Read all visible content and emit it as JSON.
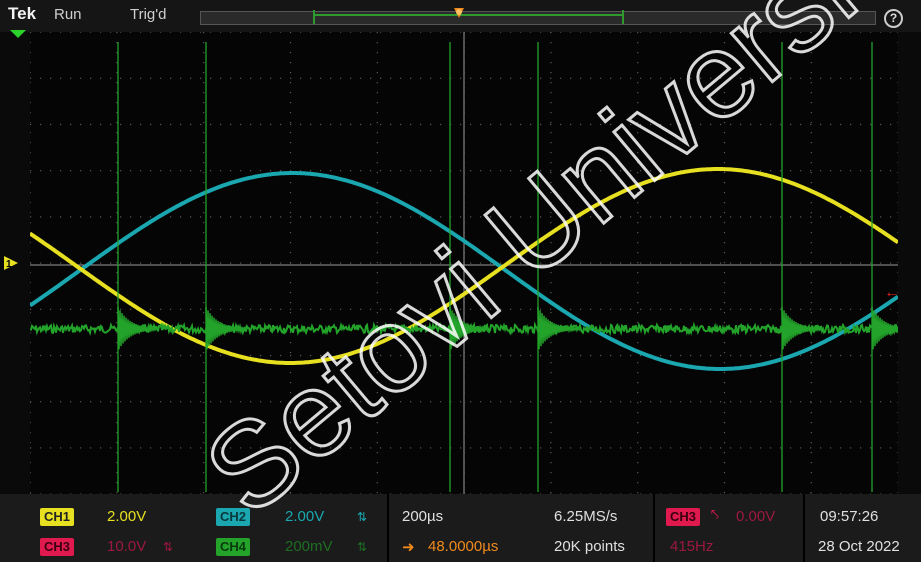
{
  "status": {
    "brand": "Tek",
    "run": "Run",
    "trigger": "Trig'd"
  },
  "icons": {
    "help": "help-icon",
    "trigger_position": "trigger-position-marker",
    "record_window": "record-window"
  },
  "colors": {
    "ch1": "#e6e020",
    "ch2": "#1aa7b0",
    "ch3": "#e01a4f",
    "ch4": "#23a32a",
    "grid": "#5a5a5a",
    "background": "#050505"
  },
  "channels": [
    {
      "id": "ch1",
      "label": "CH1",
      "scale": "2.00V"
    },
    {
      "id": "ch2",
      "label": "CH2",
      "scale": "2.00V"
    },
    {
      "id": "ch3",
      "label": "CH3",
      "scale": "10.0V"
    },
    {
      "id": "ch4",
      "label": "CH4",
      "scale": "200mV"
    }
  ],
  "horizontal": {
    "scale": "200µs",
    "position": "48.0000µs",
    "sample_rate": "6.25MS/s",
    "record_length": "20K points"
  },
  "trigger": {
    "source": "CH3",
    "level": "0.00V",
    "frequency": "415Hz"
  },
  "datetime": {
    "time": "09:57:26",
    "date": "28 Oct 2022"
  },
  "watermark": "Setovi Universi"
}
